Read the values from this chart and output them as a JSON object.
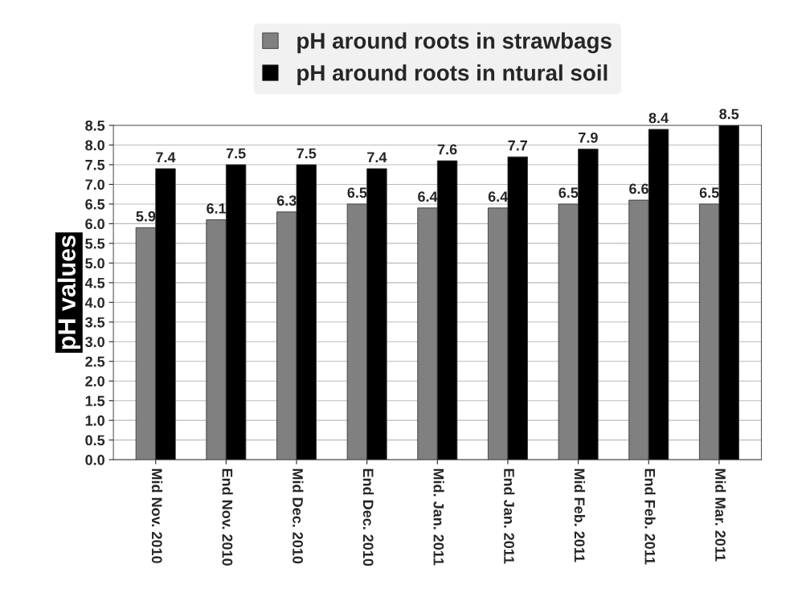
{
  "chart_data": {
    "type": "bar",
    "ylabel": "pH values",
    "categories": [
      "Mid Nov. 2010",
      "End Nov. 2010",
      "Mid Dec. 2010",
      "End Dec. 2010",
      "Mid. Jan. 2011",
      "End Jan. 2011",
      "Mid Feb. 2011",
      "End Feb. 2011",
      "Mid Mar. 2011"
    ],
    "series": [
      {
        "name": "pH around roots in strawbags",
        "color": "#808080",
        "values": [
          5.9,
          6.1,
          6.3,
          6.5,
          6.4,
          6.4,
          6.5,
          6.6,
          6.5
        ]
      },
      {
        "name": "pH around roots in ntural soil",
        "color": "#000000",
        "values": [
          7.4,
          7.5,
          7.5,
          7.4,
          7.6,
          7.7,
          7.9,
          8.4,
          8.5
        ]
      }
    ],
    "ylim": [
      0,
      8.5
    ],
    "yticks": [
      {
        "value": 0,
        "label": "0.0"
      },
      {
        "value": 0.5,
        "label": "0.5"
      },
      {
        "value": 1,
        "label": "1.0"
      },
      {
        "value": 1.5,
        "label": "1.5"
      },
      {
        "value": 2,
        "label": "2.0"
      },
      {
        "value": 2.5,
        "label": "2.5"
      },
      {
        "value": 3,
        "label": "3.0"
      },
      {
        "value": 3.5,
        "label": "3.5"
      },
      {
        "value": 4,
        "label": "4.0"
      },
      {
        "value": 4.5,
        "label": "4.5"
      },
      {
        "value": 5,
        "label": "5.0"
      },
      {
        "value": 5.5,
        "label": "5.5"
      },
      {
        "value": 6,
        "label": "6.0"
      },
      {
        "value": 6.5,
        "label": "6.5"
      },
      {
        "value": 7,
        "label": "7.0"
      },
      {
        "value": 7.5,
        "label": "7.5"
      },
      {
        "value": 8,
        "label": "8.0"
      },
      {
        "value": 8.5,
        "label": "8.5"
      }
    ],
    "grid": "y",
    "legend": "top",
    "data_labels": true
  }
}
